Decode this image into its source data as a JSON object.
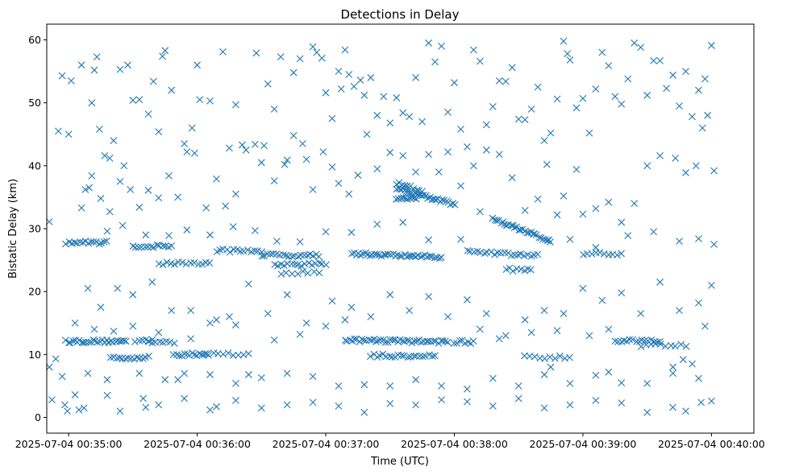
{
  "chart_data": {
    "type": "scatter",
    "title": "Detections in Delay",
    "xlabel": "Time (UTC)",
    "ylabel": "Bistatic Delay (km)",
    "marker": "x",
    "color": "#1f77b4",
    "x_unit": "minutes after 2025-07-04 00:34:00",
    "xlim": [
      0.83,
      6.33
    ],
    "ylim": [
      -2.5,
      62.5
    ],
    "xticks": [
      {
        "value": 1,
        "label": "2025-07-04 00:35:00"
      },
      {
        "value": 2,
        "label": "2025-07-04 00:36:00"
      },
      {
        "value": 3,
        "label": "2025-07-04 00:37:00"
      },
      {
        "value": 4,
        "label": "2025-07-04 00:38:00"
      },
      {
        "value": 5,
        "label": "2025-07-04 00:39:00"
      },
      {
        "value": 6,
        "label": "2025-07-04 00:40:00"
      }
    ],
    "yticks": [
      {
        "value": 0,
        "label": "0"
      },
      {
        "value": 10,
        "label": "10"
      },
      {
        "value": 20,
        "label": "20"
      },
      {
        "value": 30,
        "label": "30"
      },
      {
        "value": 40,
        "label": "40"
      },
      {
        "value": 50,
        "label": "50"
      },
      {
        "value": 60,
        "label": "60"
      }
    ],
    "tracks": [
      {
        "x0": 0.98,
        "x1": 1.45,
        "y0": 12.1,
        "y1": 12.1,
        "n": 28
      },
      {
        "x0": 1.33,
        "x1": 1.62,
        "y0": 9.5,
        "y1": 9.5,
        "n": 14
      },
      {
        "x0": 1.62,
        "x1": 1.82,
        "y0": 12.0,
        "y1": 12.0,
        "n": 8
      },
      {
        "x0": 1.82,
        "x1": 2.08,
        "y0": 10.0,
        "y1": 10.0,
        "n": 14
      },
      {
        "x0": 0.98,
        "x1": 1.3,
        "y0": 27.8,
        "y1": 27.8,
        "n": 16
      },
      {
        "x0": 1.5,
        "x1": 1.8,
        "y0": 27.2,
        "y1": 27.2,
        "n": 14
      },
      {
        "x0": 1.7,
        "x1": 2.1,
        "y0": 24.5,
        "y1": 24.5,
        "n": 14
      },
      {
        "x0": 2.15,
        "x1": 2.5,
        "y0": 26.5,
        "y1": 26.5,
        "n": 14
      },
      {
        "x0": 2.5,
        "x1": 2.95,
        "y0": 25.8,
        "y1": 25.8,
        "n": 20
      },
      {
        "x0": 2.6,
        "x1": 3.0,
        "y0": 24.3,
        "y1": 24.3,
        "n": 16
      },
      {
        "x0": 2.65,
        "x1": 2.95,
        "y0": 23.0,
        "y1": 23.0,
        "n": 8
      },
      {
        "x0": 3.2,
        "x1": 3.9,
        "y0": 26.0,
        "y1": 25.5,
        "n": 40
      },
      {
        "x0": 3.55,
        "x1": 3.7,
        "y0": 34.8,
        "y1": 34.8,
        "n": 10
      },
      {
        "x0": 3.55,
        "x1": 4.0,
        "y0": 36.5,
        "y1": 33.8,
        "n": 30
      },
      {
        "x0": 3.55,
        "x1": 3.75,
        "y0": 37.2,
        "y1": 36.0,
        "n": 10
      },
      {
        "x0": 4.3,
        "x1": 4.75,
        "y0": 31.5,
        "y1": 28.0,
        "n": 30
      },
      {
        "x0": 4.1,
        "x1": 4.65,
        "y0": 26.3,
        "y1": 25.7,
        "n": 22
      },
      {
        "x0": 4.4,
        "x1": 4.6,
        "y0": 23.5,
        "y1": 23.5,
        "n": 8
      },
      {
        "x0": 5.0,
        "x1": 5.3,
        "y0": 26.0,
        "y1": 26.0,
        "n": 10
      },
      {
        "x0": 4.55,
        "x1": 4.9,
        "y0": 9.6,
        "y1": 9.6,
        "n": 10
      },
      {
        "x0": 5.25,
        "x1": 5.6,
        "y0": 12.2,
        "y1": 12.2,
        "n": 16
      },
      {
        "x0": 5.45,
        "x1": 5.8,
        "y0": 11.5,
        "y1": 11.5,
        "n": 10
      },
      {
        "x0": 3.15,
        "x1": 3.95,
        "y0": 12.3,
        "y1": 12.0,
        "n": 44
      },
      {
        "x0": 3.35,
        "x1": 3.85,
        "y0": 9.8,
        "y1": 9.8,
        "n": 22
      },
      {
        "x0": 2.05,
        "x1": 2.4,
        "y0": 10.0,
        "y1": 10.0,
        "n": 10
      },
      {
        "x0": 1.52,
        "x1": 1.65,
        "y0": 12.2,
        "y1": 12.2,
        "n": 6
      },
      {
        "x0": 4.0,
        "x1": 4.15,
        "y0": 12.0,
        "y1": 12.0,
        "n": 8
      }
    ],
    "scatter_points": [
      [
        0.85,
        31.1
      ],
      [
        0.9,
        9.3
      ],
      [
        0.92,
        45.5
      ],
      [
        0.95,
        54.3
      ],
      [
        0.97,
        2.0
      ],
      [
        1.0,
        45.0
      ],
      [
        1.02,
        53.5
      ],
      [
        1.05,
        3.6
      ],
      [
        1.08,
        1.2
      ],
      [
        1.1,
        56.0
      ],
      [
        1.13,
        36.2
      ],
      [
        1.16,
        36.5
      ],
      [
        1.18,
        50.0
      ],
      [
        1.2,
        55.2
      ],
      [
        1.22,
        57.3
      ],
      [
        1.24,
        45.8
      ],
      [
        1.28,
        41.6
      ],
      [
        1.3,
        3.5
      ],
      [
        1.32,
        41.2
      ],
      [
        1.35,
        44.0
      ],
      [
        1.4,
        55.3
      ],
      [
        1.43,
        40.0
      ],
      [
        1.46,
        56.0
      ],
      [
        1.5,
        50.4
      ],
      [
        1.55,
        50.5
      ],
      [
        1.58,
        3.0
      ],
      [
        1.6,
        1.6
      ],
      [
        1.62,
        48.2
      ],
      [
        1.66,
        53.4
      ],
      [
        1.7,
        45.4
      ],
      [
        1.73,
        57.4
      ],
      [
        1.75,
        58.3
      ],
      [
        1.8,
        52.0
      ],
      [
        1.85,
        6.0
      ],
      [
        1.9,
        43.5
      ],
      [
        1.96,
        46.0
      ],
      [
        2.0,
        56.0
      ],
      [
        2.02,
        50.5
      ],
      [
        2.1,
        50.3
      ],
      [
        2.15,
        1.7
      ],
      [
        2.2,
        58.1
      ],
      [
        2.25,
        42.8
      ],
      [
        2.3,
        49.7
      ],
      [
        2.35,
        43.3
      ],
      [
        2.4,
        6.8
      ],
      [
        2.46,
        57.9
      ],
      [
        2.5,
        40.5
      ],
      [
        2.55,
        53.0
      ],
      [
        2.6,
        49.0
      ],
      [
        2.65,
        57.3
      ],
      [
        2.7,
        40.9
      ],
      [
        2.75,
        54.8
      ],
      [
        2.8,
        57.0
      ],
      [
        2.85,
        41.0
      ],
      [
        2.9,
        58.9
      ],
      [
        2.93,
        58.0
      ],
      [
        2.97,
        57.1
      ],
      [
        3.0,
        51.6
      ],
      [
        3.05,
        47.5
      ],
      [
        3.1,
        55.0
      ],
      [
        3.12,
        52.2
      ],
      [
        3.15,
        58.4
      ],
      [
        3.18,
        54.5
      ],
      [
        3.22,
        52.6
      ],
      [
        3.27,
        53.6
      ],
      [
        3.3,
        51.2
      ],
      [
        3.35,
        54.0
      ],
      [
        3.4,
        48.0
      ],
      [
        3.45,
        51.0
      ],
      [
        3.5,
        46.8
      ],
      [
        3.55,
        50.8
      ],
      [
        3.6,
        48.4
      ],
      [
        3.65,
        47.8
      ],
      [
        3.7,
        54.0
      ],
      [
        3.75,
        47.0
      ],
      [
        3.8,
        59.5
      ],
      [
        3.85,
        56.5
      ],
      [
        3.9,
        59.0
      ],
      [
        3.95,
        48.5
      ],
      [
        4.0,
        53.2
      ],
      [
        4.05,
        45.8
      ],
      [
        4.1,
        43.0
      ],
      [
        4.15,
        58.4
      ],
      [
        4.2,
        56.6
      ],
      [
        4.25,
        46.5
      ],
      [
        4.3,
        49.4
      ],
      [
        4.35,
        53.5
      ],
      [
        4.4,
        53.4
      ],
      [
        4.45,
        55.6
      ],
      [
        4.5,
        47.4
      ],
      [
        4.55,
        47.3
      ],
      [
        4.6,
        49.0
      ],
      [
        4.65,
        52.5
      ],
      [
        4.7,
        44.0
      ],
      [
        4.75,
        45.2
      ],
      [
        4.8,
        50.6
      ],
      [
        4.85,
        59.8
      ],
      [
        4.88,
        57.8
      ],
      [
        4.9,
        56.8
      ],
      [
        4.95,
        49.2
      ],
      [
        5.0,
        50.7
      ],
      [
        5.05,
        45.2
      ],
      [
        5.1,
        52.2
      ],
      [
        5.15,
        58.0
      ],
      [
        5.2,
        55.9
      ],
      [
        5.25,
        51.0
      ],
      [
        5.3,
        49.8
      ],
      [
        5.35,
        53.8
      ],
      [
        5.4,
        59.5
      ],
      [
        5.45,
        58.8
      ],
      [
        5.5,
        51.2
      ],
      [
        5.55,
        56.7
      ],
      [
        5.6,
        56.7
      ],
      [
        5.65,
        52.3
      ],
      [
        5.7,
        54.4
      ],
      [
        5.75,
        49.5
      ],
      [
        5.8,
        55.0
      ],
      [
        5.85,
        47.8
      ],
      [
        5.9,
        52.0
      ],
      [
        5.95,
        53.8
      ],
      [
        6.0,
        59.1
      ],
      [
        5.93,
        46.0
      ],
      [
        5.97,
        48.0
      ],
      [
        6.02,
        39.2
      ],
      [
        5.88,
        40.0
      ],
      [
        5.8,
        38.9
      ],
      [
        5.72,
        41.2
      ],
      [
        5.6,
        41.6
      ],
      [
        5.5,
        40.0
      ],
      [
        5.4,
        34.0
      ],
      [
        5.3,
        31.0
      ],
      [
        5.2,
        34.2
      ],
      [
        5.1,
        33.2
      ],
      [
        5.0,
        32.3
      ],
      [
        4.95,
        39.4
      ],
      [
        4.85,
        35.2
      ],
      [
        4.8,
        32.2
      ],
      [
        4.72,
        40.2
      ],
      [
        4.65,
        34.7
      ],
      [
        4.55,
        32.9
      ],
      [
        4.45,
        38.1
      ],
      [
        4.35,
        41.8
      ],
      [
        4.25,
        42.5
      ],
      [
        4.15,
        40.0
      ],
      [
        4.05,
        36.8
      ],
      [
        3.95,
        42.2
      ],
      [
        3.88,
        39.0
      ],
      [
        3.8,
        41.8
      ],
      [
        3.7,
        39.0
      ],
      [
        3.6,
        41.6
      ],
      [
        3.5,
        42.1
      ],
      [
        3.4,
        39.5
      ],
      [
        3.32,
        45.0
      ],
      [
        3.25,
        38.5
      ],
      [
        3.18,
        35.5
      ],
      [
        3.1,
        37.2
      ],
      [
        3.05,
        39.8
      ],
      [
        2.98,
        42.2
      ],
      [
        2.9,
        36.2
      ],
      [
        2.82,
        43.5
      ],
      [
        2.75,
        44.8
      ],
      [
        2.68,
        40.2
      ],
      [
        2.6,
        37.6
      ],
      [
        2.52,
        43.2
      ],
      [
        2.45,
        43.4
      ],
      [
        2.38,
        42.5
      ],
      [
        2.3,
        35.5
      ],
      [
        2.22,
        33.6
      ],
      [
        2.15,
        37.9
      ],
      [
        2.07,
        33.3
      ],
      [
        1.98,
        42.0
      ],
      [
        1.92,
        42.2
      ],
      [
        1.85,
        35.0
      ],
      [
        1.78,
        38.4
      ],
      [
        1.7,
        34.9
      ],
      [
        1.62,
        36.1
      ],
      [
        1.55,
        33.4
      ],
      [
        1.48,
        36.2
      ],
      [
        1.4,
        37.5
      ],
      [
        1.32,
        32.7
      ],
      [
        1.25,
        34.8
      ],
      [
        1.18,
        38.4
      ],
      [
        1.1,
        33.3
      ],
      [
        1.3,
        29.6
      ],
      [
        1.42,
        30.5
      ],
      [
        1.6,
        29.0
      ],
      [
        1.78,
        28.9
      ],
      [
        1.92,
        29.8
      ],
      [
        2.1,
        29.0
      ],
      [
        2.28,
        30.3
      ],
      [
        2.45,
        29.7
      ],
      [
        2.62,
        28.0
      ],
      [
        2.8,
        27.9
      ],
      [
        3.0,
        29.5
      ],
      [
        3.2,
        29.4
      ],
      [
        3.4,
        30.7
      ],
      [
        3.6,
        31.0
      ],
      [
        3.8,
        28.2
      ],
      [
        4.05,
        28.3
      ],
      [
        4.2,
        32.7
      ],
      [
        4.9,
        28.3
      ],
      [
        5.1,
        27.0
      ],
      [
        5.35,
        28.9
      ],
      [
        5.55,
        29.5
      ],
      [
        5.75,
        28.0
      ],
      [
        5.9,
        28.4
      ],
      [
        6.02,
        27.5
      ],
      [
        1.15,
        20.5
      ],
      [
        1.25,
        17.5
      ],
      [
        1.38,
        20.5
      ],
      [
        1.5,
        19.5
      ],
      [
        1.65,
        21.5
      ],
      [
        1.8,
        17.0
      ],
      [
        1.95,
        17.0
      ],
      [
        2.1,
        15.0
      ],
      [
        2.25,
        16.0
      ],
      [
        2.4,
        21.2
      ],
      [
        2.55,
        16.5
      ],
      [
        2.7,
        19.5
      ],
      [
        2.85,
        15.0
      ],
      [
        3.05,
        18.5
      ],
      [
        3.2,
        17.5
      ],
      [
        3.35,
        16.0
      ],
      [
        3.5,
        19.5
      ],
      [
        3.65,
        17.0
      ],
      [
        3.8,
        19.2
      ],
      [
        3.95,
        16.0
      ],
      [
        4.1,
        18.7
      ],
      [
        4.25,
        16.5
      ],
      [
        4.4,
        13.0
      ],
      [
        4.55,
        15.5
      ],
      [
        4.7,
        17.0
      ],
      [
        4.85,
        16.5
      ],
      [
        5.0,
        20.5
      ],
      [
        5.15,
        18.6
      ],
      [
        5.3,
        19.8
      ],
      [
        5.45,
        16.5
      ],
      [
        5.6,
        21.5
      ],
      [
        5.75,
        17.0
      ],
      [
        5.9,
        18.2
      ],
      [
        6.0,
        21.0
      ],
      [
        5.95,
        14.5
      ],
      [
        1.05,
        15.0
      ],
      [
        1.2,
        14.0
      ],
      [
        1.35,
        13.7
      ],
      [
        1.5,
        14.5
      ],
      [
        1.7,
        13.5
      ],
      [
        1.95,
        12.5
      ],
      [
        2.15,
        15.5
      ],
      [
        2.3,
        14.7
      ],
      [
        2.6,
        12.3
      ],
      [
        2.8,
        13.2
      ],
      [
        3.0,
        14.5
      ],
      [
        3.15,
        15.5
      ],
      [
        4.2,
        14.0
      ],
      [
        4.35,
        12.5
      ],
      [
        4.6,
        13.5
      ],
      [
        4.8,
        13.8
      ],
      [
        5.05,
        13.0
      ],
      [
        5.2,
        14.0
      ],
      [
        0.85,
        8.0
      ],
      [
        0.95,
        6.5
      ],
      [
        1.15,
        7.0
      ],
      [
        1.3,
        6.0
      ],
      [
        1.55,
        7.0
      ],
      [
        1.75,
        6.0
      ],
      [
        1.9,
        7.0
      ],
      [
        2.1,
        6.8
      ],
      [
        2.3,
        5.4
      ],
      [
        2.5,
        6.3
      ],
      [
        2.7,
        7.0
      ],
      [
        2.9,
        6.5
      ],
      [
        3.1,
        5.0
      ],
      [
        3.3,
        5.2
      ],
      [
        3.5,
        5.0
      ],
      [
        3.7,
        6.0
      ],
      [
        3.9,
        5.0
      ],
      [
        4.1,
        4.5
      ],
      [
        4.3,
        6.2
      ],
      [
        4.5,
        5.0
      ],
      [
        4.7,
        6.8
      ],
      [
        4.9,
        5.4
      ],
      [
        5.1,
        6.7
      ],
      [
        5.3,
        5.5
      ],
      [
        5.5,
        5.4
      ],
      [
        5.7,
        7.0
      ],
      [
        5.9,
        6.2
      ],
      [
        0.87,
        2.8
      ],
      [
        0.99,
        1.0
      ],
      [
        1.12,
        1.5
      ],
      [
        1.4,
        1.0
      ],
      [
        1.7,
        2.0
      ],
      [
        1.9,
        3.0
      ],
      [
        2.1,
        1.2
      ],
      [
        2.3,
        2.7
      ],
      [
        2.5,
        1.5
      ],
      [
        2.7,
        2.0
      ],
      [
        2.9,
        2.4
      ],
      [
        3.1,
        1.8
      ],
      [
        3.3,
        0.8
      ],
      [
        3.5,
        2.2
      ],
      [
        3.7,
        2.0
      ],
      [
        3.9,
        2.8
      ],
      [
        4.1,
        2.5
      ],
      [
        4.3,
        1.8
      ],
      [
        4.5,
        3.0
      ],
      [
        4.7,
        1.5
      ],
      [
        4.9,
        2.0
      ],
      [
        5.1,
        2.7
      ],
      [
        5.3,
        2.3
      ],
      [
        5.5,
        0.8
      ],
      [
        5.7,
        1.6
      ],
      [
        5.8,
        1.0
      ],
      [
        5.92,
        2.4
      ],
      [
        6.0,
        2.6
      ],
      [
        5.85,
        8.5
      ],
      [
        5.78,
        9.2
      ],
      [
        5.7,
        8.0
      ],
      [
        5.2,
        7.2
      ],
      [
        4.75,
        8.0
      ]
    ]
  }
}
